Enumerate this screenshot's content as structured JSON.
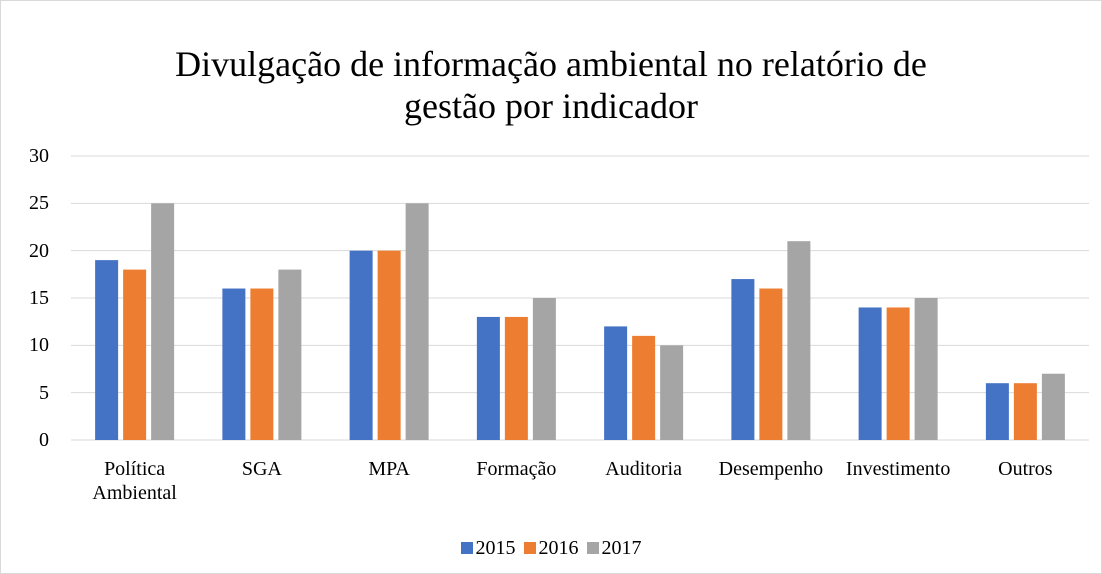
{
  "chart_data": {
    "type": "bar",
    "title": "Divulgação de informação ambiental no relatório de gestão por indicador",
    "categories": [
      "Política Ambiental",
      "SGA",
      "MPA",
      "Formação",
      "Auditoria",
      "Desempenho",
      "Investimento",
      "Outros"
    ],
    "series": [
      {
        "name": "2015",
        "color": "#4472c4",
        "values": [
          19,
          16,
          20,
          13,
          12,
          17,
          14,
          6
        ]
      },
      {
        "name": "2016",
        "color": "#ed7d31",
        "values": [
          18,
          16,
          20,
          13,
          11,
          16,
          14,
          6
        ]
      },
      {
        "name": "2017",
        "color": "#a5a5a5",
        "values": [
          25,
          18,
          25,
          15,
          10,
          21,
          15,
          7
        ]
      }
    ],
    "ylim": [
      0,
      30
    ],
    "yticks": [
      0,
      5,
      10,
      15,
      20,
      25,
      30
    ],
    "grid": true,
    "legend": "bottom"
  }
}
